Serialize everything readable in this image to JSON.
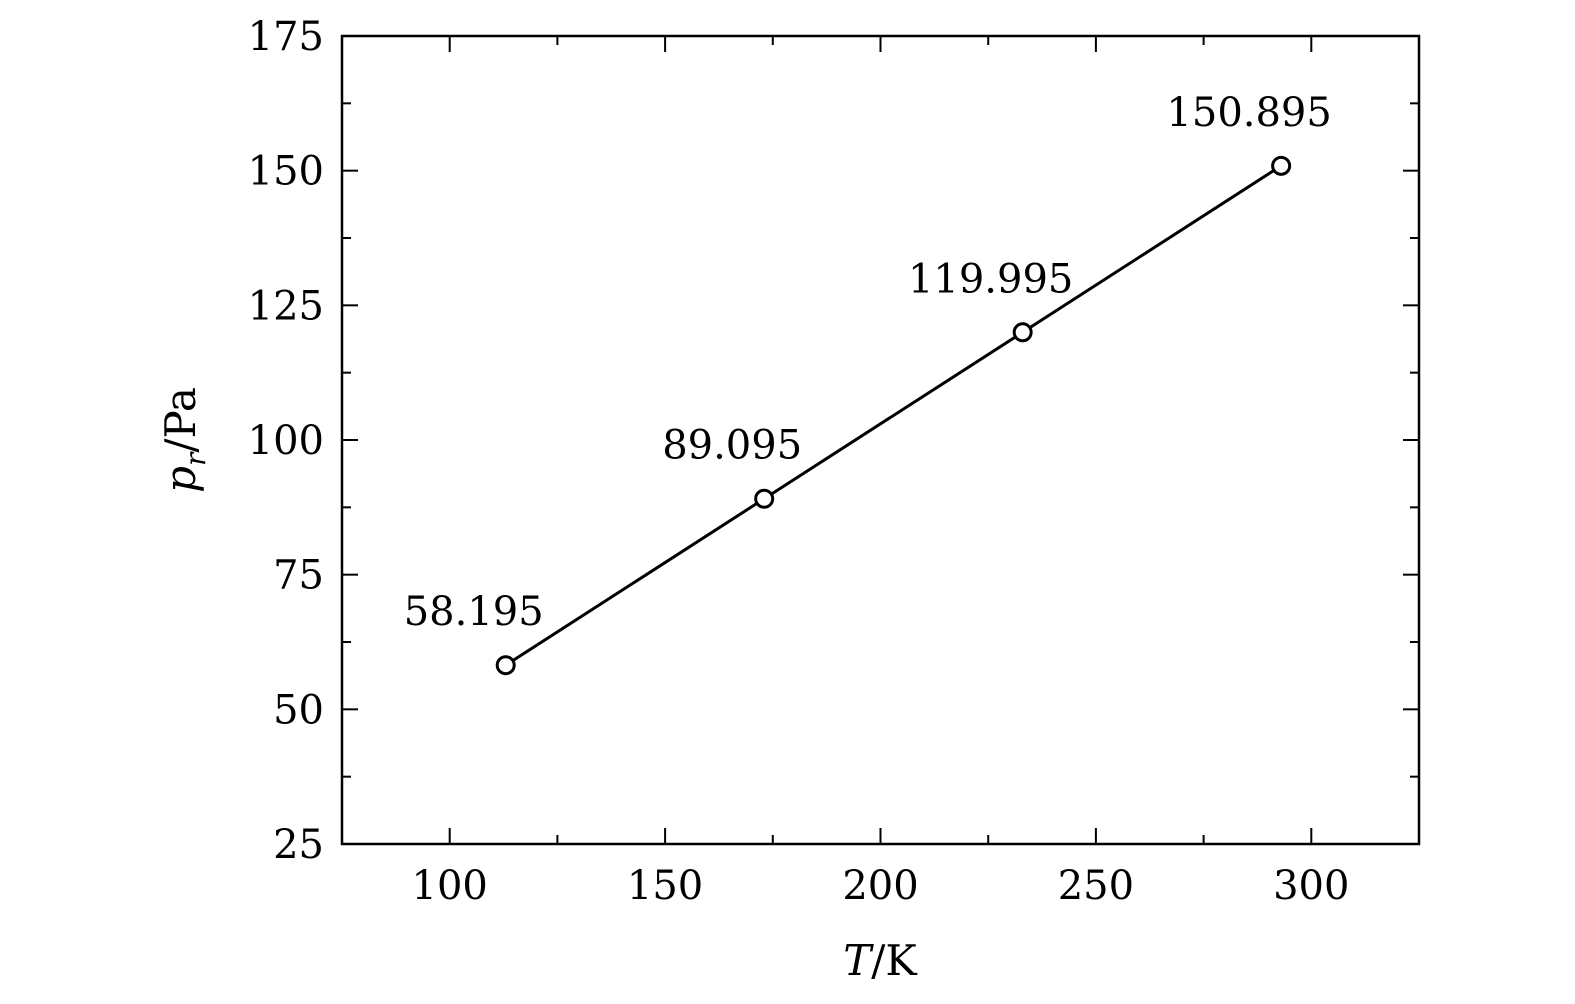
{
  "chart_data": {
    "type": "line",
    "x": [
      113,
      173,
      233,
      293
    ],
    "series": [
      {
        "values": [
          58.195,
          89.095,
          119.995,
          150.895
        ],
        "marker": "open-circle",
        "color": "#000000"
      }
    ],
    "data_labels": [
      "58.195",
      "89.095",
      "119.995",
      "150.895"
    ],
    "xlim": [
      75,
      325
    ],
    "ylim": [
      25,
      175
    ],
    "x_ticks": [
      100,
      150,
      200,
      250,
      300
    ],
    "x_minor_ticks": [
      125,
      175,
      225,
      275
    ],
    "y_ticks": [
      25,
      50,
      75,
      100,
      125,
      150,
      175
    ],
    "y_minor_ticks": [
      37.5,
      62.5,
      87.5,
      112.5,
      137.5,
      162.5
    ],
    "xlabel": {
      "main": "T",
      "rest": "/K"
    },
    "ylabel": {
      "main": "p",
      "sub": "r",
      "rest": "/Pa"
    },
    "grid": false
  }
}
